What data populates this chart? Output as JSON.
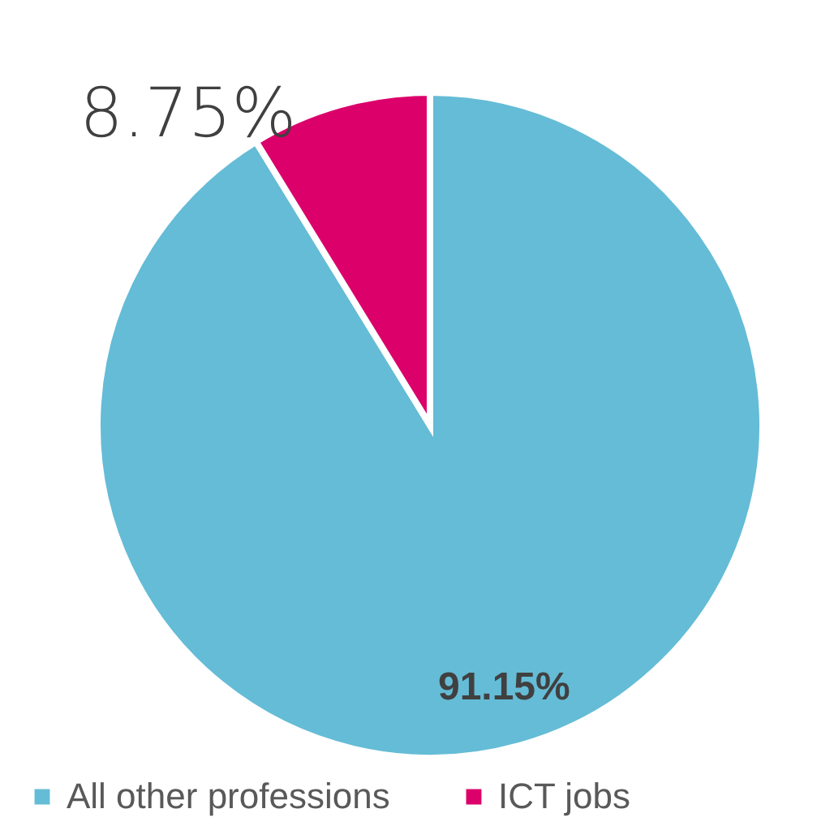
{
  "chart_data": {
    "type": "pie",
    "categories": [
      "All other professions",
      "ICT jobs"
    ],
    "values": [
      91.15,
      8.75
    ],
    "colors": [
      "#65bcd6",
      "#dc006b"
    ],
    "value_labels": [
      "91.15%",
      "8.75%"
    ],
    "legend": "bottom"
  }
}
